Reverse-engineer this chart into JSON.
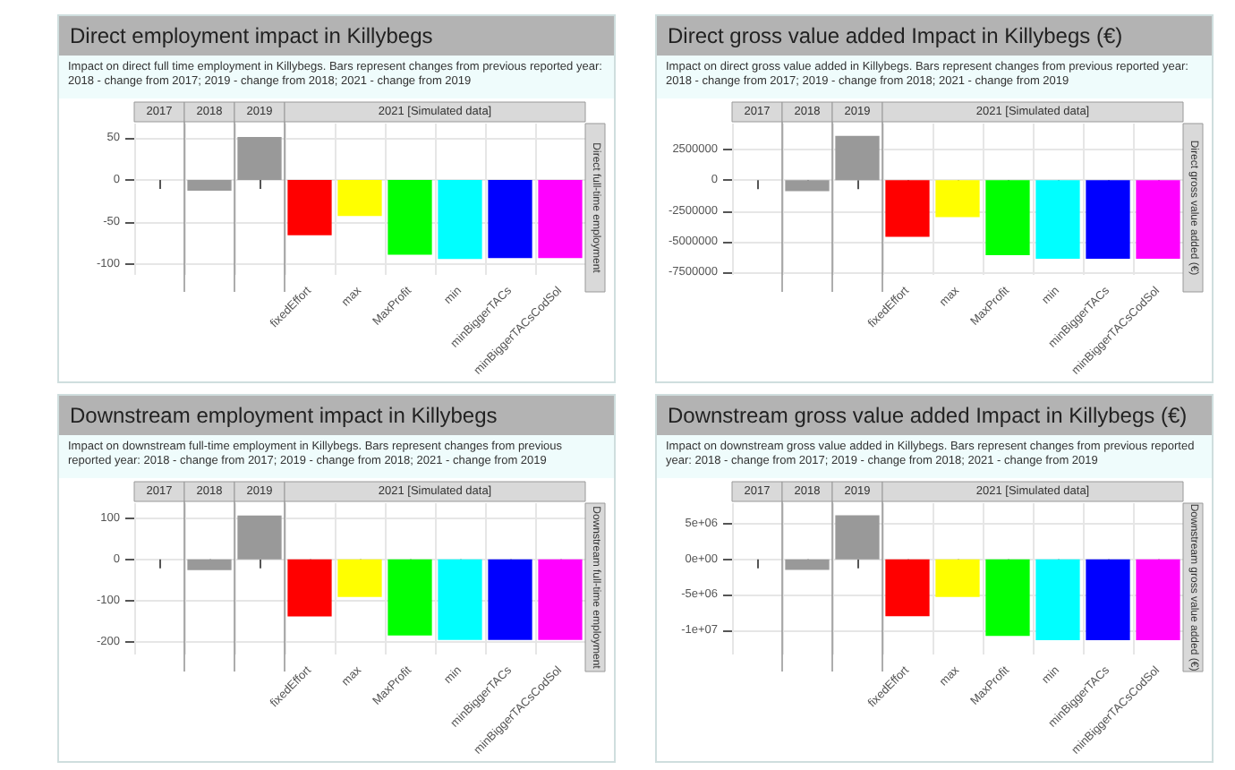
{
  "chart_data": [
    {
      "type": "bar",
      "title": "Direct employment impact in Killybegs",
      "subtitle": "Impact on direct full time employment in Killybegs. Bars represent changes from previous reported year: 2018 - change from 2017; 2019 - change from 2018; 2021 - change from 2019",
      "ylabel": "Direct full-time employment",
      "annotations": [
        "2017",
        "2018",
        "2019",
        "2021 [Simulated data]"
      ],
      "categories": [
        null,
        null,
        null,
        "fixedEffort",
        "max",
        "MaxProfit",
        "min",
        "minBiggerTACs",
        "minBiggerTACsCodSol"
      ],
      "values": [
        null,
        -13,
        51,
        -66,
        -43,
        -89,
        -94,
        -93,
        -93
      ],
      "colors": [
        "#999999",
        "#999999",
        "#999999",
        "#ff0000",
        "#ffff00",
        "#00ff00",
        "#00ffff",
        "#0000ff",
        "#ff00ff"
      ],
      "ylim": [
        -113,
        67
      ],
      "yticks": [
        -100,
        -50,
        0,
        50
      ],
      "grid": true
    },
    {
      "type": "bar",
      "title": "Direct gross value added Impact in Killybegs (€)",
      "subtitle": "Impact on direct gross value added in Killybegs. Bars represent changes from previous reported year: 2018 - change from 2017; 2019 - change from 2018; 2021 - change from 2019",
      "ylabel": "Direct gross value added (€)",
      "annotations": [
        "2017",
        "2018",
        "2019",
        "2021 [Simulated data]"
      ],
      "categories": [
        null,
        null,
        null,
        "fixedEffort",
        "max",
        "MaxProfit",
        "min",
        "minBiggerTACs",
        "minBiggerTACsCodSol"
      ],
      "values": [
        null,
        -900000,
        3600000,
        -4600000,
        -3000000,
        -6100000,
        -6400000,
        -6400000,
        -6400000
      ],
      "colors": [
        "#999999",
        "#999999",
        "#999999",
        "#ff0000",
        "#ffff00",
        "#00ff00",
        "#00ffff",
        "#0000ff",
        "#ff00ff"
      ],
      "ylim": [
        -7700000,
        4600000
      ],
      "yticks": [
        -7500000,
        -5000000,
        -2500000,
        0,
        2500000
      ],
      "grid": true
    },
    {
      "type": "bar",
      "title": "Downstream employment impact in Killybegs",
      "subtitle": "Impact on downstream full-time employment in Killybegs. Bars represent changes from previous reported year: 2018 - change from 2017; 2019 - change from 2018; 2021 - change from 2019",
      "ylabel": "Downstream full-time employment",
      "annotations": [
        "2017",
        "2018",
        "2019",
        "2021 [Simulated data]"
      ],
      "categories": [
        null,
        null,
        null,
        "fixedEffort",
        "max",
        "MaxProfit",
        "min",
        "minBiggerTACs",
        "minBiggerTACsCodSol"
      ],
      "values": [
        null,
        -26,
        106,
        -138,
        -91,
        -184,
        -195,
        -195,
        -195
      ],
      "colors": [
        "#999999",
        "#999999",
        "#999999",
        "#ff0000",
        "#ffff00",
        "#00ff00",
        "#00ffff",
        "#0000ff",
        "#ff00ff"
      ],
      "ylim": [
        -230,
        136
      ],
      "yticks": [
        -200,
        -100,
        0,
        100
      ],
      "grid": true
    },
    {
      "type": "bar",
      "title": "Downstream gross value added Impact in Killybegs (€)",
      "subtitle": "Impact on downstream gross value added in Killybegs. Bars represent changes from previous reported year: 2018 - change from 2017; 2019 - change from 2018; 2021 - change from 2019",
      "ylabel": "Downstream gross value added (€)",
      "annotations": [
        "2017",
        "2018",
        "2019",
        "2021 [Simulated data]"
      ],
      "categories": [
        null,
        null,
        null,
        "fixedEffort",
        "max",
        "MaxProfit",
        "min",
        "minBiggerTACs",
        "minBiggerTACsCodSol"
      ],
      "values": [
        null,
        -1500000,
        6200000,
        -8000000,
        -5300000,
        -10800000,
        -11400000,
        -11400000,
        -11400000
      ],
      "colors": [
        "#999999",
        "#999999",
        "#999999",
        "#ff0000",
        "#ffff00",
        "#00ff00",
        "#00ffff",
        "#0000ff",
        "#ff00ff"
      ],
      "ylim": [
        -13400000,
        7900000
      ],
      "yticks": [
        {
          "value": -10000000,
          "label": "-1e+07"
        },
        {
          "value": -5000000,
          "label": "-5e+06"
        },
        {
          "value": 0,
          "label": "0e+00"
        },
        {
          "value": 5000000,
          "label": "5e+06"
        }
      ],
      "grid": true
    }
  ]
}
